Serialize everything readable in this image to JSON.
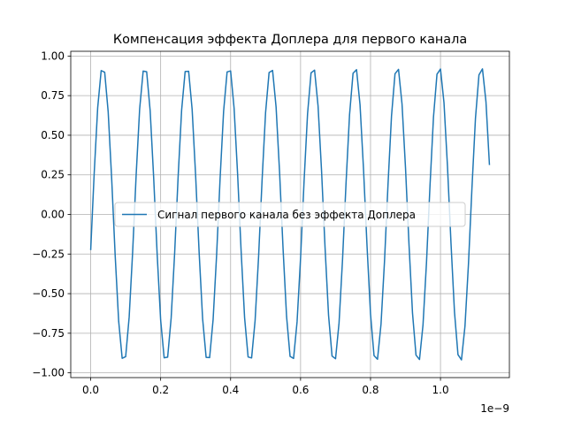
{
  "chart_data": {
    "type": "line",
    "title": "Компенсация эффекта Доплера для первого канала",
    "x_offset_label": "1e−9",
    "x": [
      0.0,
      0.01,
      0.02,
      0.03,
      0.04,
      0.05,
      0.06,
      0.07,
      0.08,
      0.09,
      0.1,
      0.11,
      0.12,
      0.13,
      0.14,
      0.15,
      0.16,
      0.17,
      0.18,
      0.19,
      0.2,
      0.21,
      0.22,
      0.23,
      0.24,
      0.25,
      0.26,
      0.27,
      0.28,
      0.29,
      0.3,
      0.31,
      0.32,
      0.33,
      0.34,
      0.35,
      0.36,
      0.37,
      0.38,
      0.39,
      0.4,
      0.41,
      0.42,
      0.43,
      0.44,
      0.45,
      0.46,
      0.47,
      0.48,
      0.49,
      0.5,
      0.51,
      0.52,
      0.53,
      0.54,
      0.55,
      0.56,
      0.57,
      0.58,
      0.59,
      0.6,
      0.61,
      0.62,
      0.63,
      0.64,
      0.65,
      0.66,
      0.67,
      0.68,
      0.69,
      0.7,
      0.71,
      0.72,
      0.73,
      0.74,
      0.75,
      0.76,
      0.77,
      0.78,
      0.79,
      0.8,
      0.81,
      0.82,
      0.83,
      0.84,
      0.85,
      0.86,
      0.87,
      0.88,
      0.89,
      0.9,
      0.91,
      0.92,
      0.93,
      0.94,
      0.95,
      0.96,
      0.97,
      0.98,
      0.99,
      1.0,
      1.01,
      1.02,
      1.03,
      1.04,
      1.05,
      1.06,
      1.07,
      1.08,
      1.09,
      1.1,
      1.11,
      1.12,
      1.13,
      1.14
    ],
    "series": [
      {
        "name": "Сигнал первого канала без эффекта Доплера",
        "color": "#1f77b4",
        "values": [
          -0.225,
          0.259,
          0.674,
          0.908,
          0.898,
          0.648,
          0.225,
          -0.259,
          -0.674,
          -0.908,
          -0.898,
          -0.648,
          -0.234,
          0.25,
          0.667,
          0.905,
          0.901,
          0.655,
          0.234,
          -0.25,
          -0.667,
          -0.905,
          -0.901,
          -0.655,
          -0.245,
          0.239,
          0.659,
          0.902,
          0.904,
          0.663,
          0.245,
          -0.239,
          -0.659,
          -0.902,
          -0.904,
          -0.663,
          -0.255,
          0.229,
          0.652,
          0.9,
          0.906,
          0.67,
          0.255,
          -0.229,
          -0.652,
          -0.9,
          -0.906,
          -0.67,
          -0.266,
          0.218,
          0.644,
          0.896,
          0.909,
          0.678,
          0.266,
          -0.218,
          -0.644,
          -0.896,
          -0.909,
          -0.678,
          -0.275,
          0.209,
          0.636,
          0.894,
          0.911,
          0.685,
          0.275,
          -0.209,
          -0.636,
          -0.894,
          -0.911,
          -0.685,
          -0.284,
          0.199,
          0.629,
          0.891,
          0.914,
          0.692,
          0.284,
          -0.199,
          -0.629,
          -0.891,
          -0.914,
          -0.692,
          -0.294,
          0.19,
          0.622,
          0.888,
          0.916,
          0.698,
          0.294,
          -0.19,
          -0.622,
          -0.888,
          -0.916,
          -0.698,
          -0.303,
          0.18,
          0.615,
          0.885,
          0.918,
          0.705,
          0.303,
          -0.18,
          -0.615,
          -0.885,
          -0.918,
          -0.705,
          -0.312,
          0.17,
          0.607,
          0.881,
          0.919,
          0.711,
          0.312
        ]
      }
    ],
    "xlim": [
      -0.057,
      1.197
    ],
    "ylim": [
      -1.03,
      1.03
    ],
    "xticks": [
      {
        "value": 0,
        "label": "0.0"
      },
      0.2,
      0.4,
      0.6,
      0.8,
      {
        "value": 1,
        "label": "1.0"
      }
    ],
    "yticks": [
      {
        "value": -1,
        "label": "−1.00"
      },
      {
        "value": -0.75,
        "label": "−0.75"
      },
      {
        "value": -0.5,
        "label": "−0.50"
      },
      {
        "value": -0.25,
        "label": "−0.25"
      },
      {
        "value": 0,
        "label": "0.00"
      },
      0.25,
      {
        "value": 0.5,
        "label": "0.50"
      },
      0.75,
      {
        "value": 1,
        "label": "1.00"
      }
    ],
    "grid": true,
    "legend": "center"
  }
}
